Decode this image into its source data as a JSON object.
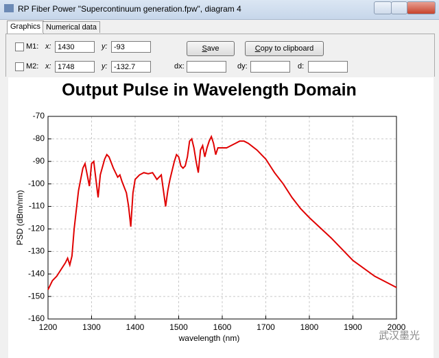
{
  "window": {
    "title": "RP Fiber Power \"Supercontinuum generation.fpw\", diagram 4",
    "tabs": [
      "Graphics",
      "Numerical data"
    ]
  },
  "markers": [
    {
      "label": "M1:",
      "x_label": "x:",
      "x": 1430,
      "y_label": "y:",
      "y": -93
    },
    {
      "label": "M2:",
      "x_label": "x:",
      "x": 1748,
      "y_label": "y:",
      "y": -132.7
    }
  ],
  "buttons": [
    "Save",
    "Copy to clipboard"
  ],
  "deltas": [
    "dx:",
    "dy:",
    "d:"
  ],
  "watermark": "武汉墨光",
  "chart_data": {
    "type": "line",
    "title": "Output Pulse in Wavelength Domain",
    "x_label": "wavelength (nm)",
    "y_label": "PSD (dBm/nm)",
    "color": "#e00000",
    "x": [
      1200,
      1210,
      1220,
      1230,
      1240,
      1245,
      1250,
      1255,
      1260,
      1270,
      1280,
      1285,
      1290,
      1295,
      1300,
      1305,
      1310,
      1315,
      1320,
      1330,
      1335,
      1340,
      1350,
      1360,
      1365,
      1370,
      1380,
      1385,
      1390,
      1395,
      1400,
      1410,
      1420,
      1430,
      1440,
      1450,
      1460,
      1465,
      1470,
      1475,
      1480,
      1490,
      1495,
      1500,
      1505,
      1510,
      1515,
      1520,
      1525,
      1530,
      1535,
      1540,
      1545,
      1550,
      1555,
      1560,
      1565,
      1570,
      1575,
      1580,
      1585,
      1590,
      1600,
      1610,
      1620,
      1630,
      1640,
      1650,
      1660,
      1680,
      1700,
      1720,
      1740,
      1760,
      1780,
      1800,
      1850,
      1900,
      1950,
      1980,
      2000
    ],
    "values": [
      -147,
      -143,
      -141,
      -138,
      -135,
      -133,
      -136,
      -132,
      -120,
      -103,
      -93,
      -91,
      -96,
      -101,
      -91,
      -90,
      -98,
      -106,
      -96,
      -89,
      -87,
      -88,
      -93,
      -97,
      -96,
      -99,
      -104,
      -110,
      -119,
      -104,
      -98,
      -96,
      -95,
      -95.5,
      -95,
      -98,
      -96,
      -103,
      -110,
      -103,
      -98,
      -90,
      -87,
      -88,
      -92,
      -93,
      -92,
      -88,
      -81,
      -80,
      -84,
      -90,
      -95,
      -85,
      -83,
      -88,
      -84,
      -81,
      -79,
      -82,
      -87,
      -84,
      -84,
      -84,
      -83,
      -82,
      -81,
      -81,
      -82,
      -85,
      -89,
      -95,
      -100,
      -106,
      -111,
      -115,
      -124,
      -134,
      -141,
      -144,
      -146
    ],
    "xlim": [
      1200,
      2000
    ],
    "xticks": [
      1200,
      1300,
      1400,
      1500,
      1600,
      1700,
      1800,
      1900,
      2000
    ],
    "ylim": [
      -160,
      -70
    ],
    "yticks": [
      -160,
      -150,
      -140,
      -130,
      -120,
      -110,
      -100,
      -90,
      -80,
      -70
    ],
    "grid": true
  }
}
